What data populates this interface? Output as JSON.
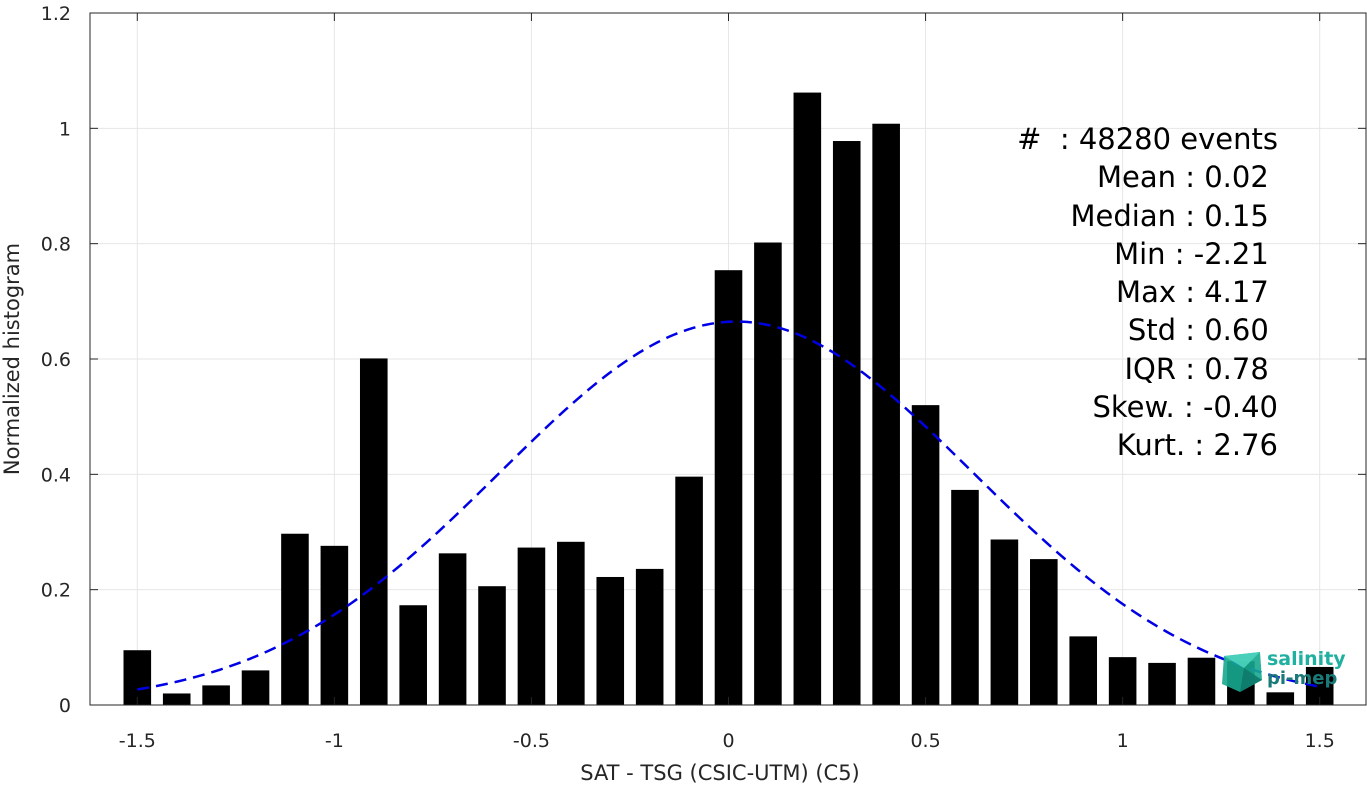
{
  "chart_data": {
    "type": "bar",
    "xlabel": "SAT - TSG (CSIC-UTM) (C5)",
    "ylabel": "Normalized histogram",
    "xlim": [
      -1.62,
      1.62
    ],
    "ylim": [
      0,
      1.2
    ],
    "xticks": [
      -1.5,
      -1,
      -0.5,
      0,
      0.5,
      1,
      1.5
    ],
    "xtick_labels": [
      "-1.5",
      "-1",
      "-0.5",
      "0",
      "0.5",
      "1",
      "1.5"
    ],
    "yticks": [
      0,
      0.2,
      0.4,
      0.6,
      0.8,
      1,
      1.2
    ],
    "ytick_labels": [
      "0",
      "0.2",
      "0.4",
      "0.6",
      "0.8",
      "1",
      "1.2"
    ],
    "grid": true,
    "bar_width": 0.07,
    "bar_color": "#000000",
    "bars": {
      "x": [
        -1.5,
        -1.4,
        -1.3,
        -1.2,
        -1.1,
        -1.0,
        -0.9,
        -0.8,
        -0.7,
        -0.6,
        -0.5,
        -0.4,
        -0.3,
        -0.2,
        -0.1,
        0.0,
        0.1,
        0.2,
        0.3,
        0.4,
        0.5,
        0.6,
        0.7,
        0.8,
        0.9,
        1.0,
        1.1,
        1.2,
        1.3,
        1.4,
        1.5
      ],
      "values": [
        0.095,
        0.02,
        0.034,
        0.06,
        0.297,
        0.276,
        0.601,
        0.173,
        0.263,
        0.206,
        0.273,
        0.283,
        0.222,
        0.236,
        0.396,
        0.754,
        0.802,
        1.062,
        0.978,
        1.008,
        0.52,
        0.373,
        0.287,
        0.253,
        0.119,
        0.083,
        0.073,
        0.082,
        0.076,
        0.022,
        0.066
      ]
    },
    "fit_curve": {
      "type": "gaussian",
      "mean": 0.02,
      "std": 0.6,
      "x_range": [
        -1.5,
        1.5
      ],
      "color": "#0000e6",
      "style": "dashed"
    }
  },
  "stats": [
    "#  : 48280 events",
    "Mean : 0.02 ",
    "Median : 0.15 ",
    "Min : -2.21 ",
    "Max : 4.17 ",
    "Std : 0.60 ",
    "IQR : 0.78 ",
    "Skew. : -0.40",
    "Kurt. : 2.76"
  ],
  "logo": {
    "line1": "salinity",
    "line2": "pi-mep"
  }
}
